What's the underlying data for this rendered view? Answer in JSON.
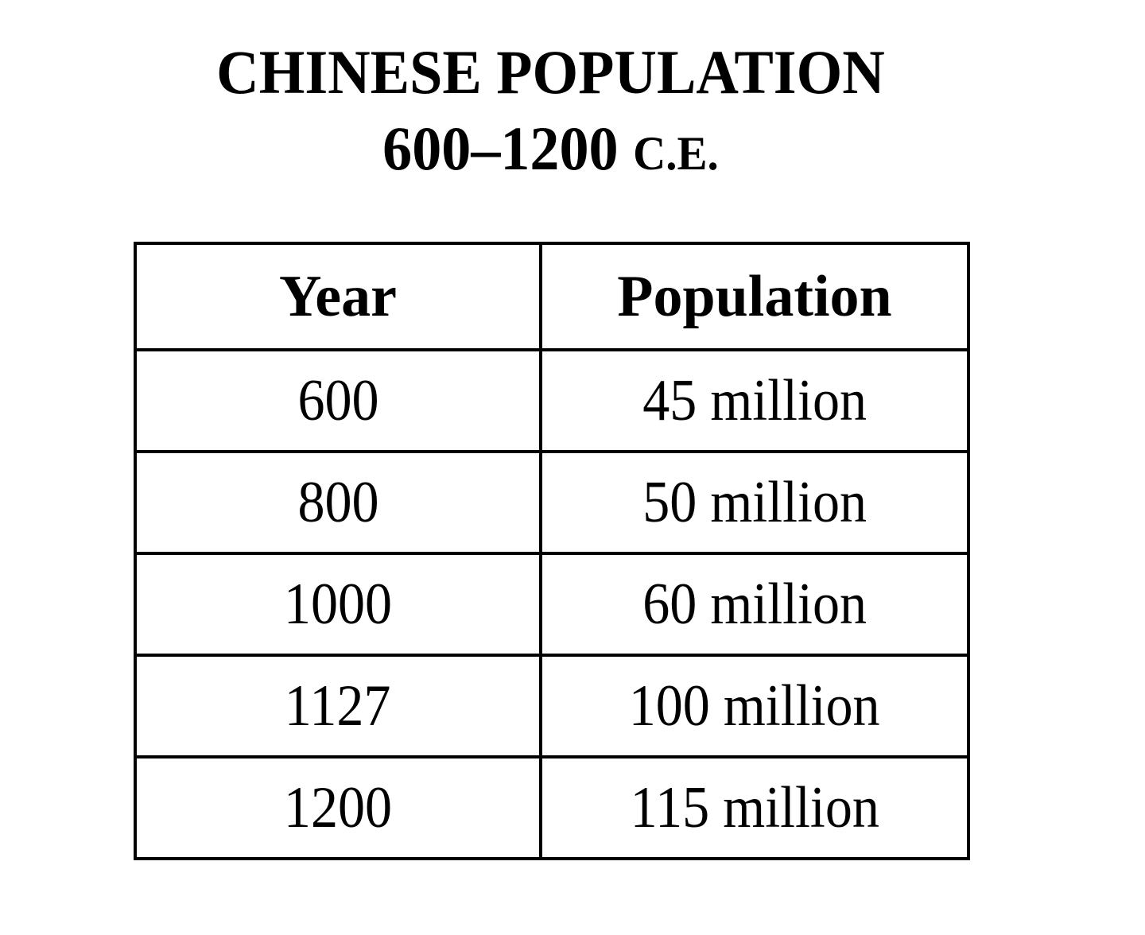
{
  "title": {
    "line1": "CHINESE POPULATION",
    "line2_range": "600–1200",
    "line2_era": "C.E."
  },
  "table": {
    "headers": [
      "Year",
      "Population"
    ],
    "rows": [
      {
        "year": "600",
        "population": "45 million"
      },
      {
        "year": "800",
        "population": "50 million"
      },
      {
        "year": "1000",
        "population": "60 million"
      },
      {
        "year": "1127",
        "population": "100 million"
      },
      {
        "year": "1200",
        "population": "115 million"
      }
    ]
  },
  "chart_data": {
    "type": "table",
    "title": "CHINESE POPULATION 600–1200 C.E.",
    "columns": [
      "Year",
      "Population"
    ],
    "categories": [
      "600",
      "800",
      "1000",
      "1127",
      "1200"
    ],
    "values": [
      45,
      50,
      60,
      100,
      115
    ],
    "unit": "million",
    "rows": [
      [
        "600",
        "45 million"
      ],
      [
        "800",
        "50 million"
      ],
      [
        "1000",
        "60 million"
      ],
      [
        "1127",
        "100 million"
      ],
      [
        "1200",
        "115 million"
      ]
    ]
  }
}
